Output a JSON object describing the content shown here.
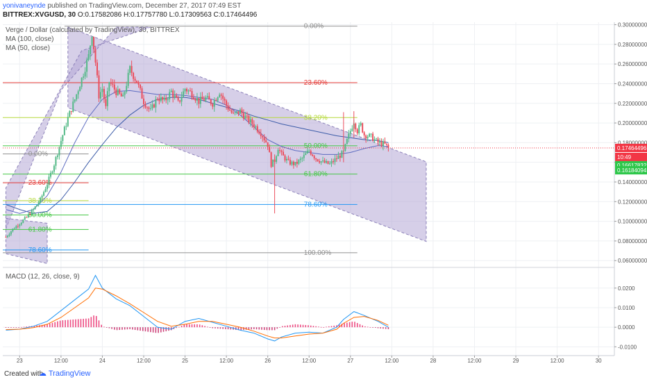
{
  "header": {
    "author": "yonivaneynde",
    "published": "published on TradingView.com, December 27, 2017 07:49 EST",
    "symbol": "BITTREX:XVGUSD, 30",
    "ohlc": "O:0.17582086 H:0.17757780 L:0.17309563 C:0.17464496"
  },
  "legend": {
    "title": "Verge / Dollar (calculated by TradingView), 30, BITTREX",
    "ma100": "MA (100, close)",
    "ma50": "MA (50, close)",
    "macd": "MACD (12, 26, close, 9)"
  },
  "footer": {
    "created": "Created with",
    "brand": "TradingView"
  },
  "colors": {
    "up": "#53b987",
    "down": "#eb4d5c",
    "ma100": "#3b5ba8",
    "ma50": "#3b5ba8",
    "macd": "#2196f3",
    "signal": "#ff6d00",
    "hist_pos": "#e91e63",
    "hist_neg": "#c2185b",
    "channel": "#b5a7d6",
    "fib_red": "#e53935",
    "fib_green": "#43c743",
    "fib_blue": "#2196f3",
    "fib_gray": "#909090",
    "fib_yellow": "#b6d93c",
    "price_tag": "#f23645",
    "green_tag": "#2ec74a"
  },
  "price_tags": {
    "last": "0.17464496",
    "countdown": "10:49",
    "ma_a": "0.16617832",
    "ma_b": "0.16184094"
  },
  "chart_data": {
    "type": "candlestick",
    "y_ticks": [
      "0.30000000",
      "0.28000000",
      "0.26000000",
      "0.24000000",
      "0.22000000",
      "0.20000000",
      "0.18000000",
      "0.16000000",
      "0.14000000",
      "0.12000000",
      "0.10000000",
      "0.08000000",
      "0.06000000"
    ],
    "y_tick_values": [
      0.3,
      0.28,
      0.26,
      0.24,
      0.22,
      0.2,
      0.18,
      0.16,
      0.14,
      0.12,
      0.1,
      0.08,
      0.06
    ],
    "ylim": [
      0.0545,
      0.3025
    ],
    "macd_ticks": [
      "0.0200",
      "0.0100",
      "0.0000",
      "-0.0100"
    ],
    "macd_tick_values": [
      0.02,
      0.01,
      0.0,
      -0.01
    ],
    "macd_ylim": [
      -0.0145,
      0.0295
    ],
    "x_labels": [
      "23",
      "12:00",
      "24",
      "12:00",
      "25",
      "12:00",
      "26",
      "12:00",
      "27",
      "12:00",
      "28",
      "12:00",
      "29",
      "12:00",
      "30"
    ],
    "x_label_hours": [
      24,
      36,
      48,
      60,
      72,
      84,
      96,
      108,
      120,
      132,
      144,
      156,
      168,
      180,
      192
    ],
    "xlim_hours": [
      19.1,
      196.6
    ],
    "fib_large": [
      {
        "label": "0.00%",
        "price": 0.2985,
        "start": 37
      },
      {
        "label": "23.60%",
        "price": 0.241,
        "start": 0
      },
      {
        "label": "38.20%",
        "price": 0.2055,
        "start": 0
      },
      {
        "label": "50.00%",
        "price": 0.1768,
        "start": 0
      },
      {
        "label": "61.80%",
        "price": 0.148,
        "start": 0
      },
      {
        "label": "78.60%",
        "price": 0.1171,
        "start": 0
      },
      {
        "label": "100.00%",
        "price": 0.068,
        "start": 0
      }
    ],
    "fib_small": [
      {
        "label": "0.00%",
        "price": 0.1685
      },
      {
        "label": "23.60%",
        "price": 0.1392
      },
      {
        "label": "38.20%",
        "price": 0.121
      },
      {
        "label": "50.00%",
        "price": 0.1064
      },
      {
        "label": "61.80%",
        "price": 0.0917
      },
      {
        "label": "78.60%",
        "price": 0.0708
      }
    ],
    "channel_upper": [
      [
        20,
        0.104
      ],
      [
        36,
        0.2535
      ],
      [
        52,
        0.2975
      ],
      [
        62,
        0.2975
      ]
    ],
    "channel_main": [
      [
        38,
        0.2975
      ],
      [
        142,
        0.1605
      ],
      [
        142,
        0.0795
      ],
      [
        38,
        0.2155
      ]
    ],
    "channel_small_low": [
      [
        20,
        0.067
      ],
      [
        32,
        0.057
      ]
    ],
    "ma100_points": [
      [
        20,
        0.117
      ],
      [
        24,
        0.112
      ],
      [
        28,
        0.108
      ],
      [
        32,
        0.11
      ],
      [
        36,
        0.122
      ],
      [
        40,
        0.14
      ],
      [
        44,
        0.16
      ],
      [
        48,
        0.178
      ],
      [
        52,
        0.195
      ],
      [
        56,
        0.208
      ],
      [
        60,
        0.218
      ],
      [
        64,
        0.224
      ],
      [
        68,
        0.226
      ],
      [
        72,
        0.226
      ],
      [
        76,
        0.224
      ],
      [
        80,
        0.22
      ],
      [
        84,
        0.216
      ],
      [
        88,
        0.212
      ],
      [
        92,
        0.207
      ],
      [
        96,
        0.203
      ],
      [
        100,
        0.199
      ],
      [
        104,
        0.196
      ],
      [
        108,
        0.193
      ],
      [
        112,
        0.19
      ],
      [
        116,
        0.187
      ],
      [
        120,
        0.185
      ],
      [
        124,
        0.183
      ],
      [
        128,
        0.182
      ],
      [
        131,
        0.18
      ]
    ],
    "ma50_points": [
      [
        20,
        0.112
      ],
      [
        24,
        0.108
      ],
      [
        28,
        0.112
      ],
      [
        32,
        0.126
      ],
      [
        36,
        0.15
      ],
      [
        40,
        0.18
      ],
      [
        44,
        0.206
      ],
      [
        48,
        0.224
      ],
      [
        52,
        0.232
      ],
      [
        56,
        0.233
      ],
      [
        60,
        0.231
      ],
      [
        64,
        0.229
      ],
      [
        68,
        0.229
      ],
      [
        72,
        0.228
      ],
      [
        76,
        0.226
      ],
      [
        80,
        0.224
      ],
      [
        84,
        0.218
      ],
      [
        88,
        0.208
      ],
      [
        92,
        0.196
      ],
      [
        96,
        0.183
      ],
      [
        100,
        0.176
      ],
      [
        104,
        0.172
      ],
      [
        108,
        0.17
      ],
      [
        112,
        0.168
      ],
      [
        116,
        0.168
      ],
      [
        120,
        0.17
      ],
      [
        124,
        0.174
      ],
      [
        128,
        0.177
      ],
      [
        131,
        0.176
      ]
    ],
    "price_path": [
      [
        20,
        0.084
      ],
      [
        22,
        0.092
      ],
      [
        24,
        0.098
      ],
      [
        26,
        0.104
      ],
      [
        28,
        0.112
      ],
      [
        30,
        0.122
      ],
      [
        32,
        0.138
      ],
      [
        34,
        0.158
      ],
      [
        36,
        0.182
      ],
      [
        38,
        0.205
      ],
      [
        40,
        0.224
      ],
      [
        42,
        0.245
      ],
      [
        44,
        0.268
      ],
      [
        45,
        0.292
      ],
      [
        46,
        0.262
      ],
      [
        47,
        0.228
      ],
      [
        48,
        0.235
      ],
      [
        49,
        0.215
      ],
      [
        50,
        0.242
      ],
      [
        52,
        0.232
      ],
      [
        54,
        0.225
      ],
      [
        56,
        0.255
      ],
      [
        58,
        0.242
      ],
      [
        60,
        0.222
      ],
      [
        62,
        0.212
      ],
      [
        64,
        0.226
      ],
      [
        66,
        0.222
      ],
      [
        68,
        0.232
      ],
      [
        70,
        0.22
      ],
      [
        72,
        0.235
      ],
      [
        74,
        0.23
      ],
      [
        76,
        0.222
      ],
      [
        78,
        0.225
      ],
      [
        80,
        0.22
      ],
      [
        82,
        0.232
      ],
      [
        84,
        0.218
      ],
      [
        86,
        0.208
      ],
      [
        88,
        0.212
      ],
      [
        90,
        0.204
      ],
      [
        92,
        0.198
      ],
      [
        94,
        0.19
      ],
      [
        96,
        0.178
      ],
      [
        97,
        0.158
      ],
      [
        98,
        0.162
      ],
      [
        99,
        0.175
      ],
      [
        100,
        0.168
      ],
      [
        102,
        0.16
      ],
      [
        104,
        0.158
      ],
      [
        106,
        0.164
      ],
      [
        108,
        0.172
      ],
      [
        110,
        0.164
      ],
      [
        112,
        0.16
      ],
      [
        114,
        0.158
      ],
      [
        116,
        0.164
      ],
      [
        118,
        0.17
      ],
      [
        119,
        0.182
      ],
      [
        120,
        0.192
      ],
      [
        121,
        0.202
      ],
      [
        122,
        0.192
      ],
      [
        123,
        0.198
      ],
      [
        124,
        0.188
      ],
      [
        126,
        0.186
      ],
      [
        128,
        0.18
      ],
      [
        130,
        0.178
      ],
      [
        131,
        0.1746
      ]
    ],
    "wicks_extreme": [
      [
        98,
        0.108,
        0.168
      ],
      [
        118,
        0.16,
        0.211
      ],
      [
        121,
        0.185,
        0.212
      ]
    ],
    "macd_line": [
      [
        20,
        -0.0015
      ],
      [
        24,
        -0.001
      ],
      [
        28,
        0.0005
      ],
      [
        32,
        0.003
      ],
      [
        36,
        0.0085
      ],
      [
        40,
        0.014
      ],
      [
        44,
        0.0195
      ],
      [
        46,
        0.0265
      ],
      [
        48,
        0.02
      ],
      [
        52,
        0.0145
      ],
      [
        56,
        0.011
      ],
      [
        60,
        0.0055
      ],
      [
        64,
        0.0
      ],
      [
        68,
        -0.001
      ],
      [
        72,
        0.003
      ],
      [
        76,
        0.0045
      ],
      [
        80,
        0.0025
      ],
      [
        84,
        0.0005
      ],
      [
        88,
        -0.0015
      ],
      [
        92,
        -0.003
      ],
      [
        96,
        -0.006
      ],
      [
        98,
        -0.007
      ],
      [
        100,
        -0.005
      ],
      [
        104,
        -0.003
      ],
      [
        108,
        -0.0025
      ],
      [
        112,
        -0.003
      ],
      [
        116,
        0.0
      ],
      [
        118,
        0.004
      ],
      [
        121,
        0.008
      ],
      [
        124,
        0.006
      ],
      [
        128,
        0.003
      ],
      [
        131,
        0.0
      ]
    ],
    "signal_line": [
      [
        20,
        -0.0012
      ],
      [
        24,
        -0.001
      ],
      [
        28,
        -0.0002
      ],
      [
        32,
        0.0015
      ],
      [
        36,
        0.005
      ],
      [
        40,
        0.01
      ],
      [
        44,
        0.015
      ],
      [
        46,
        0.02
      ],
      [
        48,
        0.0195
      ],
      [
        52,
        0.016
      ],
      [
        56,
        0.012
      ],
      [
        60,
        0.0075
      ],
      [
        64,
        0.003
      ],
      [
        68,
        0.0005
      ],
      [
        72,
        0.0015
      ],
      [
        76,
        0.003
      ],
      [
        80,
        0.003
      ],
      [
        84,
        0.0015
      ],
      [
        88,
        0.0
      ],
      [
        92,
        -0.002
      ],
      [
        96,
        -0.0045
      ],
      [
        98,
        -0.0055
      ],
      [
        100,
        -0.0055
      ],
      [
        104,
        -0.0045
      ],
      [
        108,
        -0.0035
      ],
      [
        112,
        -0.003
      ],
      [
        116,
        -0.001
      ],
      [
        118,
        0.002
      ],
      [
        121,
        0.005
      ],
      [
        124,
        0.0055
      ],
      [
        128,
        0.0035
      ],
      [
        131,
        0.001
      ]
    ],
    "last_price": 0.17464496
  }
}
